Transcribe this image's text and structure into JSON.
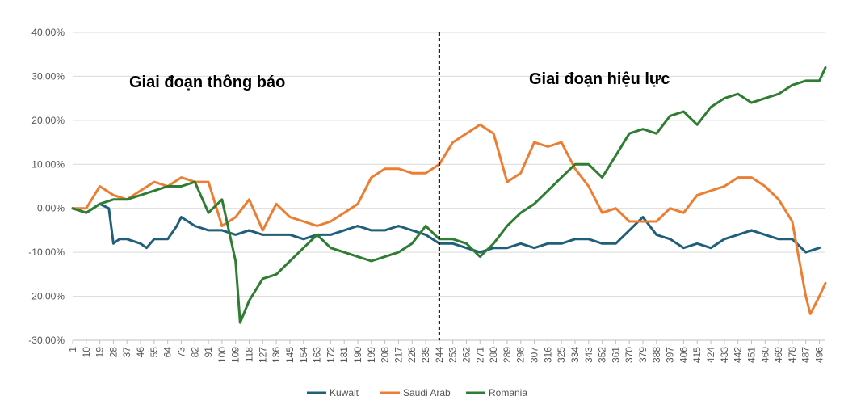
{
  "chart_data": {
    "type": "line",
    "title": "",
    "xlabel": "",
    "ylabel": "",
    "x_range": [
      1,
      500
    ],
    "ylim": [
      -30,
      40
    ],
    "y_ticks": [
      {
        "value": 40,
        "label": "40.00%"
      },
      {
        "value": 30,
        "label": "30.00%"
      },
      {
        "value": 20,
        "label": "20.00%"
      },
      {
        "value": 10,
        "label": "10.00%"
      },
      {
        "value": 0,
        "label": "0.00%"
      },
      {
        "value": -10,
        "label": "-10.00%"
      },
      {
        "value": -20,
        "label": "-20.00%"
      },
      {
        "value": -30,
        "label": "-30.00%"
      }
    ],
    "x_ticks": [
      "1",
      "10",
      "19",
      "28",
      "37",
      "46",
      "55",
      "64",
      "73",
      "82",
      "91",
      "100",
      "109",
      "118",
      "127",
      "136",
      "145",
      "154",
      "163",
      "172",
      "181",
      "190",
      "199",
      "208",
      "217",
      "226",
      "235",
      "244",
      "253",
      "262",
      "271",
      "280",
      "289",
      "298",
      "307",
      "316",
      "325",
      "334",
      "343",
      "352",
      "361",
      "370",
      "379",
      "388",
      "397",
      "406",
      "415",
      "424",
      "433",
      "442",
      "451",
      "460",
      "469",
      "478",
      "487",
      "496"
    ],
    "grid": "horizontal",
    "legend_position": "bottom",
    "divider": {
      "x": 244,
      "style": "dashed"
    },
    "annotations": [
      {
        "text": "Giai đoạn thông báo"
      },
      {
        "text": "Giai đoạn hiệu lực"
      }
    ],
    "series": [
      {
        "name": "Kuwait",
        "color": "#1f5f7a",
        "points": [
          [
            1,
            0
          ],
          [
            10,
            -1
          ],
          [
            19,
            1
          ],
          [
            25,
            0
          ],
          [
            28,
            -8
          ],
          [
            32,
            -7
          ],
          [
            37,
            -7
          ],
          [
            46,
            -8
          ],
          [
            50,
            -9
          ],
          [
            55,
            -7
          ],
          [
            64,
            -7
          ],
          [
            70,
            -4
          ],
          [
            73,
            -2
          ],
          [
            82,
            -4
          ],
          [
            91,
            -5
          ],
          [
            100,
            -5
          ],
          [
            109,
            -6
          ],
          [
            118,
            -5
          ],
          [
            127,
            -6
          ],
          [
            136,
            -6
          ],
          [
            145,
            -6
          ],
          [
            154,
            -7
          ],
          [
            163,
            -6
          ],
          [
            172,
            -6
          ],
          [
            181,
            -5
          ],
          [
            190,
            -4
          ],
          [
            199,
            -5
          ],
          [
            208,
            -5
          ],
          [
            217,
            -4
          ],
          [
            226,
            -5
          ],
          [
            235,
            -6
          ],
          [
            244,
            -8
          ],
          [
            253,
            -8
          ],
          [
            262,
            -9
          ],
          [
            271,
            -10
          ],
          [
            280,
            -9
          ],
          [
            289,
            -9
          ],
          [
            298,
            -8
          ],
          [
            307,
            -9
          ],
          [
            316,
            -8
          ],
          [
            325,
            -8
          ],
          [
            334,
            -7
          ],
          [
            343,
            -7
          ],
          [
            352,
            -8
          ],
          [
            361,
            -8
          ],
          [
            370,
            -5
          ],
          [
            379,
            -2
          ],
          [
            388,
            -6
          ],
          [
            397,
            -7
          ],
          [
            406,
            -9
          ],
          [
            415,
            -8
          ],
          [
            424,
            -9
          ],
          [
            433,
            -7
          ],
          [
            442,
            -6
          ],
          [
            451,
            -5
          ],
          [
            460,
            -6
          ],
          [
            469,
            -7
          ],
          [
            478,
            -7
          ],
          [
            487,
            -10
          ],
          [
            496,
            -9
          ]
        ]
      },
      {
        "name": "Saudi Arab",
        "color": "#ed7d31",
        "points": [
          [
            1,
            0
          ],
          [
            10,
            0
          ],
          [
            19,
            5
          ],
          [
            28,
            3
          ],
          [
            37,
            2
          ],
          [
            46,
            4
          ],
          [
            55,
            6
          ],
          [
            64,
            5
          ],
          [
            73,
            7
          ],
          [
            82,
            6
          ],
          [
            91,
            6
          ],
          [
            100,
            -4
          ],
          [
            109,
            -2
          ],
          [
            118,
            2
          ],
          [
            127,
            -5
          ],
          [
            136,
            1
          ],
          [
            145,
            -2
          ],
          [
            154,
            -3
          ],
          [
            163,
            -4
          ],
          [
            172,
            -3
          ],
          [
            181,
            -1
          ],
          [
            190,
            1
          ],
          [
            199,
            7
          ],
          [
            208,
            9
          ],
          [
            217,
            9
          ],
          [
            226,
            8
          ],
          [
            235,
            8
          ],
          [
            244,
            10
          ],
          [
            253,
            15
          ],
          [
            262,
            17
          ],
          [
            271,
            19
          ],
          [
            280,
            17
          ],
          [
            289,
            6
          ],
          [
            298,
            8
          ],
          [
            307,
            15
          ],
          [
            316,
            14
          ],
          [
            325,
            15
          ],
          [
            334,
            9
          ],
          [
            343,
            5
          ],
          [
            352,
            -1
          ],
          [
            361,
            0
          ],
          [
            370,
            -3
          ],
          [
            379,
            -3
          ],
          [
            388,
            -3
          ],
          [
            397,
            0
          ],
          [
            406,
            -1
          ],
          [
            415,
            3
          ],
          [
            424,
            4
          ],
          [
            433,
            5
          ],
          [
            442,
            7
          ],
          [
            451,
            7
          ],
          [
            460,
            5
          ],
          [
            469,
            2
          ],
          [
            478,
            -3
          ],
          [
            487,
            -20
          ],
          [
            490,
            -24
          ],
          [
            496,
            -20
          ],
          [
            500,
            -17
          ]
        ]
      },
      {
        "name": "Romania",
        "color": "#2e7d32",
        "points": [
          [
            1,
            0
          ],
          [
            10,
            -1
          ],
          [
            19,
            1
          ],
          [
            28,
            2
          ],
          [
            37,
            2
          ],
          [
            46,
            3
          ],
          [
            55,
            4
          ],
          [
            64,
            5
          ],
          [
            73,
            5
          ],
          [
            82,
            6
          ],
          [
            91,
            -1
          ],
          [
            100,
            2
          ],
          [
            109,
            -12
          ],
          [
            112,
            -26
          ],
          [
            118,
            -21
          ],
          [
            127,
            -16
          ],
          [
            136,
            -15
          ],
          [
            145,
            -12
          ],
          [
            154,
            -9
          ],
          [
            163,
            -6
          ],
          [
            172,
            -9
          ],
          [
            181,
            -10
          ],
          [
            190,
            -11
          ],
          [
            199,
            -12
          ],
          [
            208,
            -11
          ],
          [
            217,
            -10
          ],
          [
            226,
            -8
          ],
          [
            235,
            -4
          ],
          [
            244,
            -7
          ],
          [
            253,
            -7
          ],
          [
            262,
            -8
          ],
          [
            271,
            -11
          ],
          [
            280,
            -8
          ],
          [
            289,
            -4
          ],
          [
            298,
            -1
          ],
          [
            307,
            1
          ],
          [
            316,
            4
          ],
          [
            325,
            7
          ],
          [
            334,
            10
          ],
          [
            343,
            10
          ],
          [
            352,
            7
          ],
          [
            361,
            12
          ],
          [
            370,
            17
          ],
          [
            379,
            18
          ],
          [
            388,
            17
          ],
          [
            397,
            21
          ],
          [
            406,
            22
          ],
          [
            415,
            19
          ],
          [
            424,
            23
          ],
          [
            433,
            25
          ],
          [
            442,
            26
          ],
          [
            451,
            24
          ],
          [
            460,
            25
          ],
          [
            469,
            26
          ],
          [
            478,
            28
          ],
          [
            487,
            29
          ],
          [
            496,
            29
          ],
          [
            500,
            32
          ]
        ]
      }
    ]
  }
}
